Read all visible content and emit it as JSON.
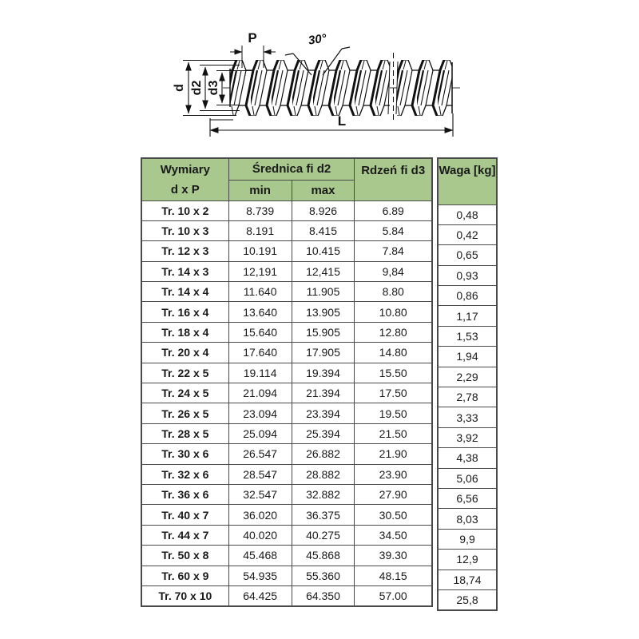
{
  "page": {
    "background": "#ffffff"
  },
  "drawing": {
    "description": "trapezoidal-thread-lead-screw-side-view",
    "labels": {
      "pitch": "P",
      "flank_angle": "30°",
      "outer_diameter": "d",
      "pitch_diameter": "d2",
      "core_diameter": "d3",
      "length": "L"
    }
  },
  "table": {
    "headers": {
      "dimensions_line1": "Wymiary",
      "dimensions_line2": "d x P",
      "diameter_group": "Średnica fi d2",
      "min": "min",
      "max": "max",
      "core": "Rdzeń fi d3",
      "weight": "Waga [kg]"
    },
    "rows": [
      {
        "dim": "Tr. 10 x 2",
        "min": "8.739",
        "max": "8.926",
        "core": "6.89",
        "weight": "0,48"
      },
      {
        "dim": "Tr. 10 x 3",
        "min": "8.191",
        "max": "8.415",
        "core": "5.84",
        "weight": "0,42"
      },
      {
        "dim": "Tr. 12 x 3",
        "min": "10.191",
        "max": "10.415",
        "core": "7.84",
        "weight": "0,65"
      },
      {
        "dim": "Tr. 14 x 3",
        "min": "12,191",
        "max": "12,415",
        "core": "9,84",
        "weight": "0,93"
      },
      {
        "dim": "Tr. 14 x 4",
        "min": "11.640",
        "max": "11.905",
        "core": "8.80",
        "weight": "0,86"
      },
      {
        "dim": "Tr. 16 x 4",
        "min": "13.640",
        "max": "13.905",
        "core": "10.80",
        "weight": "1,17"
      },
      {
        "dim": "Tr. 18 x 4",
        "min": "15.640",
        "max": "15.905",
        "core": "12.80",
        "weight": "1,53"
      },
      {
        "dim": "Tr. 20 x 4",
        "min": "17.640",
        "max": "17.905",
        "core": "14.80",
        "weight": "1,94"
      },
      {
        "dim": "Tr. 22 x 5",
        "min": "19.114",
        "max": "19.394",
        "core": "15.50",
        "weight": "2,29"
      },
      {
        "dim": "Tr. 24 x 5",
        "min": "21.094",
        "max": "21.394",
        "core": "17.50",
        "weight": "2,78"
      },
      {
        "dim": "Tr. 26 x 5",
        "min": "23.094",
        "max": "23.394",
        "core": "19.50",
        "weight": "3,33"
      },
      {
        "dim": "Tr. 28 x 5",
        "min": "25.094",
        "max": "25.394",
        "core": "21.50",
        "weight": "3,92"
      },
      {
        "dim": "Tr. 30 x 6",
        "min": "26.547",
        "max": "26.882",
        "core": "21.90",
        "weight": "4,38"
      },
      {
        "dim": "Tr. 32 x 6",
        "min": "28.547",
        "max": "28.882",
        "core": "23.90",
        "weight": "5,06"
      },
      {
        "dim": "Tr. 36 x 6",
        "min": "32.547",
        "max": "32.882",
        "core": "27.90",
        "weight": "6,56"
      },
      {
        "dim": "Tr. 40 x 7",
        "min": "36.020",
        "max": "36.375",
        "core": "30.50",
        "weight": "8,03"
      },
      {
        "dim": "Tr. 44 x 7",
        "min": "40.020",
        "max": "40.275",
        "core": "34.50",
        "weight": "9,9"
      },
      {
        "dim": "Tr. 50 x 8",
        "min": "45.468",
        "max": "45.868",
        "core": "39.30",
        "weight": "12,9"
      },
      {
        "dim": "Tr. 60 x 9",
        "min": "54.935",
        "max": "55.360",
        "core": "48.15",
        "weight": "18,74"
      },
      {
        "dim": "Tr. 70 x 10",
        "min": "64.425",
        "max": "64.350",
        "core": "57.00",
        "weight": "25,8"
      }
    ]
  },
  "colors": {
    "header_green": "#a9c88e",
    "table_border": "#4a4a4a",
    "drawing_line": "#111111"
  }
}
